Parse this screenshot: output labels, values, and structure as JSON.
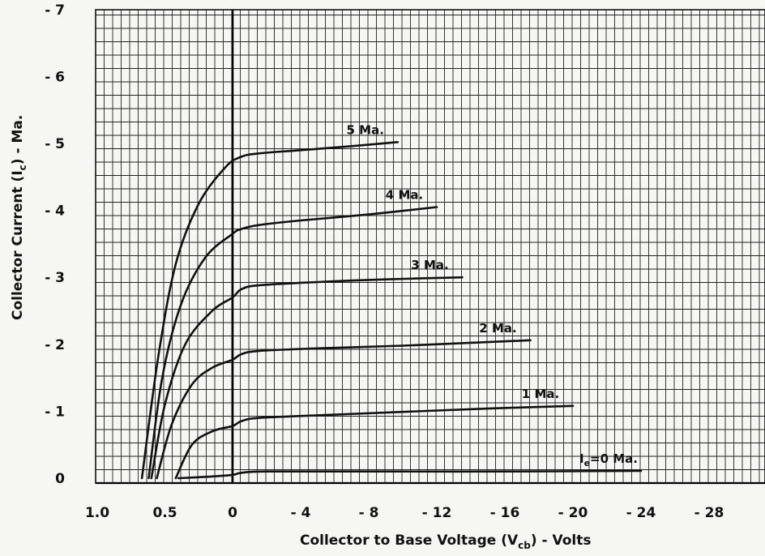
{
  "chart_data": {
    "type": "line",
    "xlabel": "Collector to Base Voltage (V",
    "xlabel_sub": "cb",
    "xlabel_tail": ") - Volts",
    "ylabel": "Collector Current (I",
    "ylabel_sub": "c",
    "ylabel_tail": ") - Ma.",
    "grid": true,
    "x_axis_note": "forward bias 1.0 to 0 on left, reverse bias 0 to -28 on right",
    "x_ticks": [
      {
        "label": "1.0",
        "v": 1.0
      },
      {
        "label": "0.5",
        "v": 0.5
      },
      {
        "label": "0",
        "v": 0
      },
      {
        "label": "- 4",
        "v": -4
      },
      {
        "label": "- 8",
        "v": -8
      },
      {
        "label": "- 12",
        "v": -12
      },
      {
        "label": "- 16",
        "v": -16
      },
      {
        "label": "- 20",
        "v": -20
      },
      {
        "label": "- 24",
        "v": -24
      },
      {
        "label": "- 28",
        "v": -28
      }
    ],
    "y_ticks": [
      {
        "label": "0",
        "v": 0
      },
      {
        "label": "- 1",
        "v": -1
      },
      {
        "label": "- 2",
        "v": -2
      },
      {
        "label": "- 3",
        "v": -3
      },
      {
        "label": "- 4",
        "v": -4
      },
      {
        "label": "- 5",
        "v": -5
      },
      {
        "label": "- 6",
        "v": -6
      },
      {
        "label": "- 7",
        "v": -7
      }
    ],
    "series": [
      {
        "name": "I",
        "name_sub": "e",
        "name_tail": "=0 Ma.",
        "x": [
          0.4,
          0.2,
          0.0,
          -0.5,
          -2,
          -8,
          -16,
          -24
        ],
        "y": [
          0.0,
          -0.02,
          -0.05,
          -0.08,
          -0.1,
          -0.1,
          -0.1,
          -0.11
        ]
      },
      {
        "name": "1 Ma.",
        "x": [
          0.42,
          0.3,
          0.15,
          0.0,
          -0.5,
          -1.5,
          -5,
          -10,
          -15,
          -20
        ],
        "y": [
          0.0,
          -0.5,
          -0.7,
          -0.78,
          -0.85,
          -0.9,
          -0.94,
          -0.99,
          -1.04,
          -1.08
        ]
      },
      {
        "name": "2 Ma.",
        "x": [
          0.56,
          0.45,
          0.3,
          0.15,
          0.0,
          -0.5,
          -1.5,
          -5,
          -10,
          -17.5
        ],
        "y": [
          0.0,
          -0.8,
          -1.4,
          -1.65,
          -1.77,
          -1.85,
          -1.9,
          -1.94,
          -1.98,
          -2.06
        ]
      },
      {
        "name": "3 Ma.",
        "x": [
          0.6,
          0.5,
          0.35,
          0.15,
          0.0,
          -0.5,
          -1.5,
          -5,
          -9,
          -13.5
        ],
        "y": [
          0.0,
          -1.1,
          -2.0,
          -2.5,
          -2.7,
          -2.82,
          -2.88,
          -2.93,
          -2.97,
          -3.0
        ]
      },
      {
        "name": "4 Ma.",
        "x": [
          0.62,
          0.52,
          0.38,
          0.2,
          0.0,
          -0.5,
          -1.5,
          -4,
          -8,
          -12
        ],
        "y": [
          0.0,
          -1.5,
          -2.6,
          -3.3,
          -3.65,
          -3.72,
          -3.78,
          -3.85,
          -3.94,
          -4.05
        ]
      },
      {
        "name": "5 Ma.",
        "x": [
          0.67,
          0.55,
          0.42,
          0.25,
          0.05,
          -0.5,
          -1.5,
          -4,
          -7,
          -9.7
        ],
        "y": [
          0.0,
          -1.8,
          -3.2,
          -4.1,
          -4.65,
          -4.8,
          -4.85,
          -4.9,
          -4.96,
          -5.02
        ]
      }
    ]
  }
}
